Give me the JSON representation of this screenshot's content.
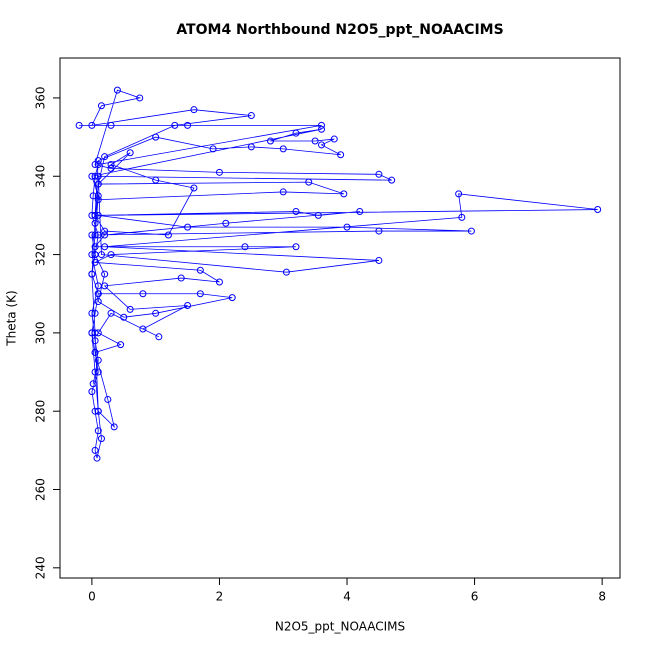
{
  "chart_data": {
    "type": "line",
    "title": "ATOM4 Northbound N2O5_ppt_NOAACIMS",
    "x_label": "N2O5_ppt_NOAACIMS",
    "y_label": "Theta (K)",
    "xlim": [
      -0.5,
      8.28
    ],
    "ylim": [
      237.4,
      370.2
    ],
    "xticks": [
      0,
      2,
      4,
      6,
      8
    ],
    "yticks": [
      240,
      260,
      280,
      300,
      320,
      340,
      360
    ],
    "markers": true,
    "x": [
      -0.2,
      0.3,
      1.5,
      3.6,
      0.1,
      0.05,
      0.02,
      0.0,
      0.1,
      0.05,
      0.0,
      0.1,
      0.05,
      0.0,
      0.05,
      0.1,
      0.0,
      0.05,
      0.1,
      0.05,
      0.08,
      0.15,
      0.1,
      0.05,
      0.0,
      0.1,
      0.8,
      1.7,
      2.2,
      1.0,
      0.5,
      0.1,
      0.2,
      0.05,
      0.0,
      4.5,
      5.95,
      4.0,
      1.5,
      0.1,
      7.93,
      5.75,
      5.8,
      0.2,
      4.5,
      3.05,
      0.15,
      0.1,
      4.7,
      4.5,
      2.0,
      0.3,
      0.05,
      0.4,
      0.75,
      0.15,
      0.0,
      1.6,
      2.5,
      1.3,
      0.2,
      0.1,
      3.4,
      3.95,
      3.0,
      0.1,
      0.05,
      3.2,
      3.55,
      4.2,
      2.1,
      0.2,
      0.05,
      2.4,
      3.2,
      0.3,
      0.05,
      1.7,
      2.0,
      1.4,
      0.2,
      0.6,
      1.5,
      0.8,
      1.05,
      0.3,
      0.1,
      0.45,
      0.05,
      0.25,
      0.35,
      0.1,
      0.05,
      0.0,
      0.05,
      0.1,
      0.0,
      3.6,
      3.2,
      2.8,
      3.5,
      3.8,
      3.6,
      3.9,
      3.0,
      2.5,
      1.9,
      1.0,
      0.1,
      0.05,
      0.2,
      1.2,
      1.6,
      1.0,
      0.3,
      0.6,
      0.1,
      0.05,
      0.0,
      0.1,
      0.0,
      0.05,
      0.1,
      0.02
    ],
    "series": [
      {
        "name": "Theta (K)",
        "color": "#0000ff",
        "values": [
          353,
          353,
          353,
          353,
          343,
          340,
          335,
          330,
          325,
          320,
          315,
          310,
          305,
          300,
          295,
          290,
          285,
          280,
          275,
          270,
          268,
          273,
          280,
          290,
          300,
          310,
          310,
          310,
          309,
          305,
          304,
          308,
          315,
          320,
          325,
          326,
          326,
          327,
          327,
          330,
          331.5,
          335.5,
          329.5,
          322,
          318.5,
          315.5,
          320,
          340,
          339,
          340.5,
          341,
          342,
          343,
          362,
          360,
          358,
          353,
          357,
          355.5,
          353,
          345,
          338,
          338.5,
          335.5,
          336,
          334,
          330,
          331,
          330,
          331,
          328,
          325,
          322,
          322,
          322,
          320,
          318,
          316,
          313,
          314,
          312,
          306,
          307,
          301,
          299,
          305,
          300,
          297,
          295,
          283,
          276,
          280,
          300,
          315,
          325,
          335,
          340,
          352,
          351,
          349,
          349,
          349.5,
          348,
          345.5,
          347,
          347.5,
          347,
          350,
          344,
          330,
          326,
          325,
          337,
          339,
          343,
          346,
          338,
          328,
          320,
          312,
          305,
          298,
          293,
          287
        ]
      }
    ]
  }
}
